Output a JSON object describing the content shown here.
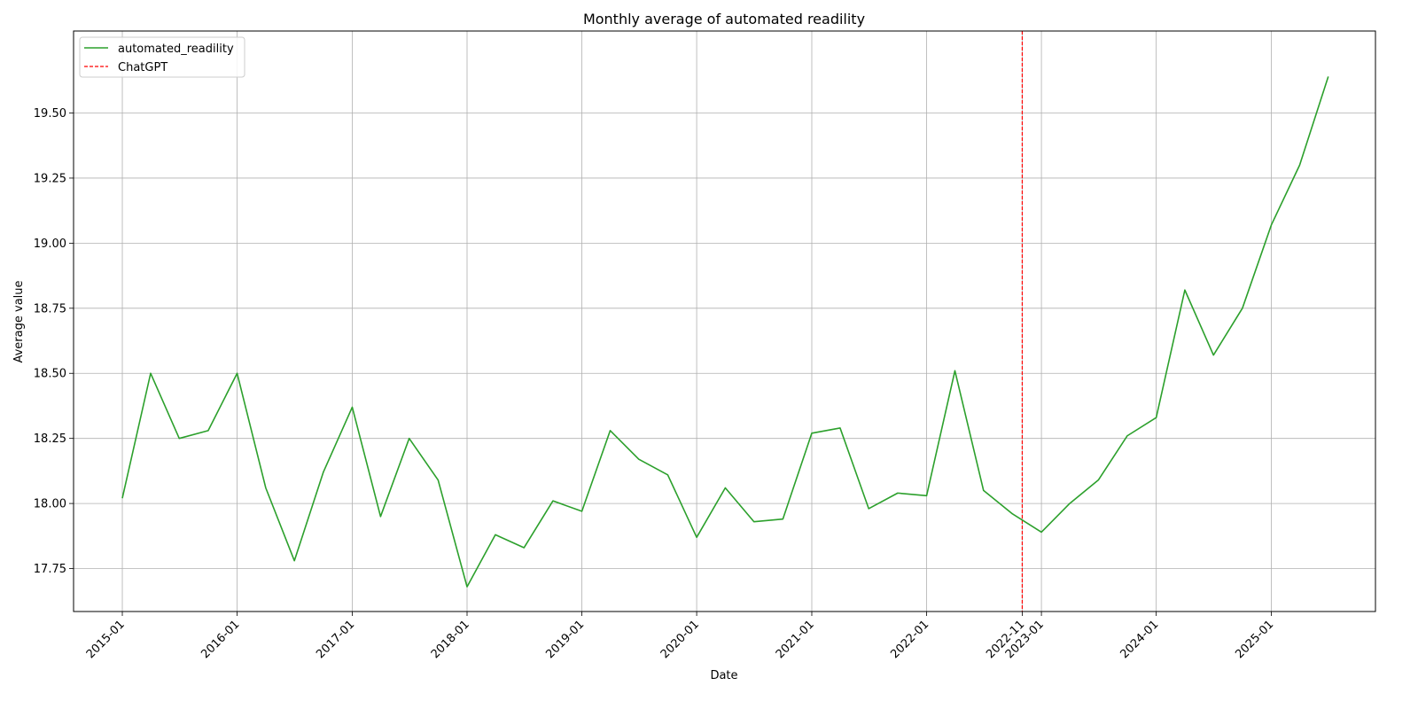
{
  "chart_data": {
    "type": "line",
    "title": "Monthly average of automated readility",
    "xlabel": "Date",
    "ylabel": "Average value",
    "x_ticks": [
      "2015-01",
      "2016-01",
      "2017-01",
      "2018-01",
      "2019-01",
      "2020-01",
      "2021-01",
      "2022-01",
      "2022-11",
      "2023-01",
      "2024-01",
      "2025-01"
    ],
    "y_ticks": [
      "17.75",
      "18.00",
      "18.25",
      "18.50",
      "18.75",
      "19.00",
      "19.25",
      "19.50"
    ],
    "xlim": [
      "2014-07-30",
      "2025-11-28"
    ],
    "ylim": [
      17.585,
      19.815
    ],
    "grid": true,
    "legend_position": "top-left",
    "series": [
      {
        "name": "automated_readility",
        "color": "#2ca02c",
        "style": "solid",
        "x": [
          "2015-01",
          "2015-04",
          "2015-07",
          "2015-10",
          "2016-01",
          "2016-04",
          "2016-07",
          "2016-10",
          "2017-01",
          "2017-04",
          "2017-07",
          "2017-10",
          "2018-01",
          "2018-04",
          "2018-07",
          "2018-10",
          "2019-01",
          "2019-04",
          "2019-07",
          "2019-10",
          "2020-01",
          "2020-04",
          "2020-07",
          "2020-10",
          "2021-01",
          "2021-04",
          "2021-07",
          "2021-10",
          "2022-01",
          "2022-04",
          "2022-07",
          "2022-10",
          "2023-01",
          "2023-04",
          "2023-07",
          "2023-10",
          "2024-01",
          "2024-04",
          "2024-07",
          "2024-10",
          "2025-01",
          "2025-04",
          "2025-07"
        ],
        "values": [
          18.02,
          18.5,
          18.25,
          18.28,
          18.5,
          18.06,
          17.78,
          18.12,
          18.37,
          17.95,
          18.25,
          18.09,
          17.68,
          17.88,
          17.83,
          18.01,
          17.97,
          18.28,
          18.17,
          18.11,
          17.87,
          18.06,
          17.93,
          17.94,
          18.27,
          18.29,
          17.98,
          18.04,
          18.03,
          18.51,
          18.05,
          17.96,
          17.89,
          18.0,
          18.09,
          18.26,
          18.33,
          18.82,
          18.57,
          18.75,
          19.07,
          19.3,
          19.64
        ]
      }
    ],
    "annotations": [
      {
        "name": "ChatGPT",
        "type": "vline",
        "x": "2022-11",
        "color": "#ff0000",
        "style": "dashed"
      }
    ]
  }
}
